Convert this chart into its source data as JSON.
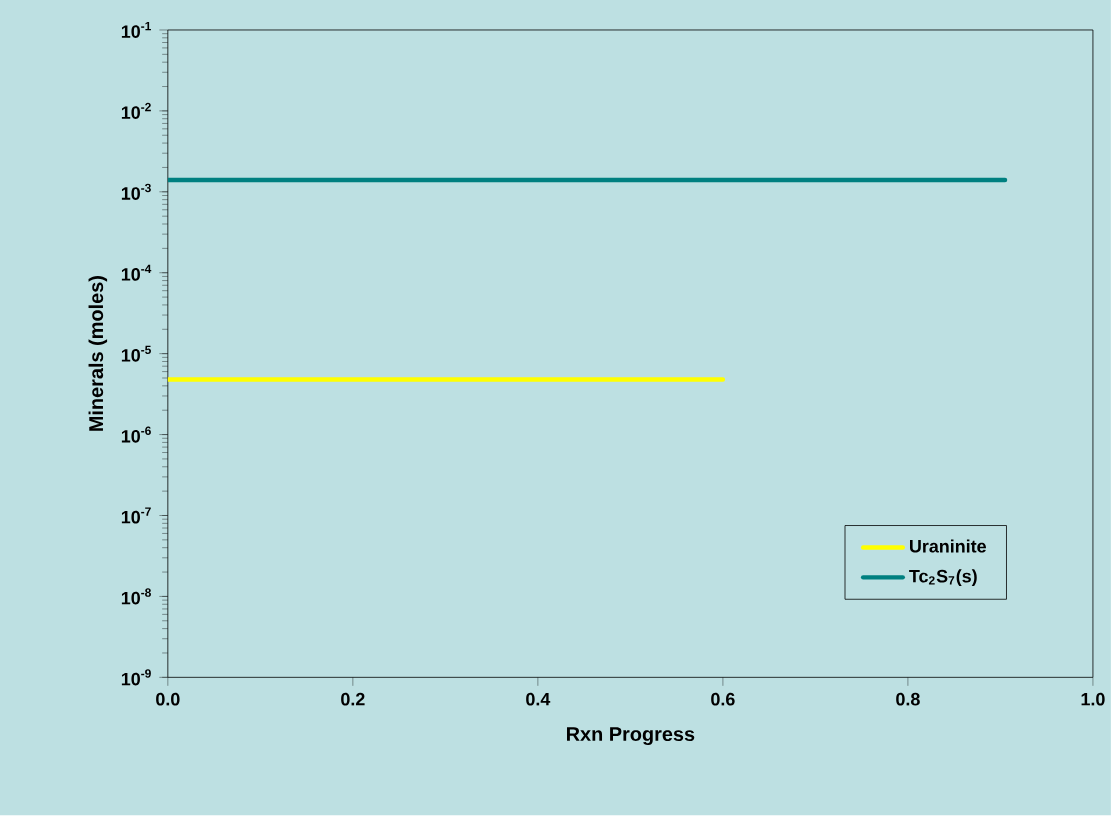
{
  "chart_data": {
    "type": "line",
    "xlabel": "Rxn Progress",
    "ylabel": "Minerals (moles)",
    "log": "y",
    "xlim": [
      0,
      1.0
    ],
    "xticks": [
      {
        "value": 0,
        "label": "0.0"
      },
      {
        "value": 0.2,
        "label": "0.2"
      },
      {
        "value": 0.4,
        "label": "0.4"
      },
      {
        "value": 0.6,
        "label": "0.6"
      },
      {
        "value": 0.8,
        "label": "0.8"
      },
      {
        "value": 1.0,
        "label": "1.0"
      }
    ],
    "ylim": [
      1e-09,
      0.1
    ],
    "yticks": [
      {
        "value": 1e-09,
        "label": "10$^{-9}$"
      },
      {
        "value": 1e-08,
        "label": "10$^{-8}$"
      },
      {
        "value": 1e-07,
        "label": "10$^{-7}$"
      },
      {
        "value": 1e-06,
        "label": "10$^{-6}$"
      },
      {
        "value": 1e-05,
        "label": "10$^{-5}$"
      },
      {
        "value": 0.0001,
        "label": "10$^{-4}$"
      },
      {
        "value": 0.001,
        "label": "10$^{-3}$"
      },
      {
        "value": 0.01,
        "label": "10$^{-2}$"
      },
      {
        "value": 0.1,
        "label": "10$^{-1}$"
      }
    ],
    "grid": false,
    "legend": "bottom right",
    "marker": "none",
    "line_style": "solid",
    "series": [
      {
        "name": "Uraninite",
        "color": "#ffff00",
        "x": [
          0,
          0.6
        ],
        "values": [
          4.8e-06,
          4.8e-06
        ]
      },
      {
        "name": "Tc$_{2}$S$_{7}$(s)",
        "color": "#008080",
        "x": [
          0,
          0.905
        ],
        "values": [
          0.0014,
          0.0014
        ]
      }
    ]
  }
}
